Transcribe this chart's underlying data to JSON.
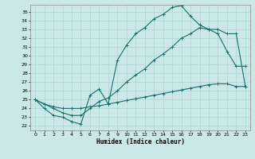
{
  "xlabel": "Humidex (Indice chaleur)",
  "xlim": [
    -0.5,
    23.5
  ],
  "ylim": [
    21.5,
    35.8
  ],
  "yticks": [
    22,
    23,
    24,
    25,
    26,
    27,
    28,
    29,
    30,
    31,
    32,
    33,
    34,
    35
  ],
  "xticks": [
    0,
    1,
    2,
    3,
    4,
    5,
    6,
    7,
    8,
    9,
    10,
    11,
    12,
    13,
    14,
    15,
    16,
    17,
    18,
    19,
    20,
    21,
    22,
    23
  ],
  "bg_color": "#cbe8e8",
  "grid_color": "#b0d8d8",
  "line_color": "#1a6e6e",
  "line1_x": [
    0,
    1,
    2,
    3,
    4,
    5,
    6,
    7,
    8,
    9,
    10,
    11,
    12,
    13,
    14,
    15,
    16,
    17,
    18,
    19,
    20,
    21,
    22,
    23
  ],
  "line1_y": [
    25.0,
    24.0,
    23.2,
    23.0,
    22.5,
    22.2,
    25.5,
    26.2,
    24.5,
    29.5,
    31.2,
    32.5,
    33.2,
    34.2,
    34.7,
    35.5,
    35.7,
    34.5,
    33.5,
    33.0,
    32.5,
    30.5,
    28.8,
    28.8
  ],
  "line2_x": [
    0,
    1,
    2,
    3,
    4,
    5,
    6,
    7,
    8,
    9,
    10,
    11,
    12,
    13,
    14,
    15,
    16,
    17,
    18,
    19,
    20,
    21,
    22,
    23
  ],
  "line2_y": [
    25.0,
    24.5,
    24.0,
    23.5,
    23.2,
    23.2,
    24.0,
    24.8,
    25.2,
    26.0,
    27.0,
    27.8,
    28.5,
    29.5,
    30.2,
    31.0,
    32.0,
    32.5,
    33.2,
    33.0,
    33.0,
    32.5,
    32.5,
    26.5
  ],
  "line3_x": [
    0,
    1,
    2,
    3,
    4,
    5,
    6,
    7,
    8,
    9,
    10,
    11,
    12,
    13,
    14,
    15,
    16,
    17,
    18,
    19,
    20,
    21,
    22,
    23
  ],
  "line3_y": [
    25.0,
    24.5,
    24.2,
    24.0,
    24.0,
    24.0,
    24.2,
    24.3,
    24.5,
    24.7,
    24.9,
    25.1,
    25.3,
    25.5,
    25.7,
    25.9,
    26.1,
    26.3,
    26.5,
    26.7,
    26.8,
    26.8,
    26.5,
    26.5
  ]
}
